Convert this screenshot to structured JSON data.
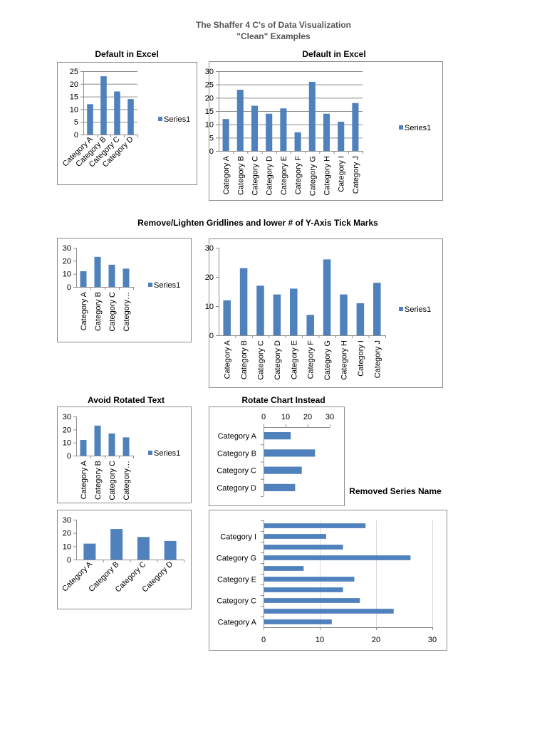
{
  "document": {
    "title_line1": "The Shaffer 4 C's of Data Visualization",
    "title_line2": "\"Clean\" Examples",
    "section_heading": "Remove/Lighten Gridlines and lower # of Y-Axis Tick Marks",
    "caption_default_1": "Default in Excel",
    "caption_default_2": "Default in Excel",
    "caption_avoid_rotated": "Avoid Rotated Text",
    "caption_rotate_chart": "Rotate Chart Instead",
    "caption_removed_series": "Removed Series Name"
  },
  "colors": {
    "bar": "#4f81bd",
    "gridline": "#8c8c8c",
    "light_gridline": "#d9d9d9",
    "frame": "#8c8c8c"
  },
  "chart_data": [
    {
      "type": "bar",
      "orientation": "vertical",
      "title": "Default in Excel",
      "categories": [
        "Category A",
        "Category B",
        "Category C",
        "Category D"
      ],
      "display_labels": [
        "Category A",
        "Category B",
        "Category C",
        "Category D"
      ],
      "series": [
        {
          "name": "Series1",
          "values": [
            12,
            23,
            17,
            14
          ]
        }
      ],
      "ylim": [
        0,
        25
      ],
      "ticks": [
        0,
        5,
        10,
        15,
        20,
        25
      ],
      "grid": true,
      "label_rotation": -45,
      "legend": "right"
    },
    {
      "type": "bar",
      "orientation": "vertical",
      "title": "Default in Excel",
      "categories": [
        "Category A",
        "Category B",
        "Category C",
        "Category D",
        "Category E",
        "Category F",
        "Category G",
        "Category H",
        "Category I",
        "Category J"
      ],
      "display_labels": [
        "Category A",
        "Category B",
        "Category C",
        "Category D",
        "Category E",
        "Category F",
        "Category G",
        "Category H",
        "Category I",
        "Category J"
      ],
      "series": [
        {
          "name": "Series1",
          "values": [
            12,
            23,
            17,
            14,
            16,
            7,
            26,
            14,
            11,
            18
          ]
        }
      ],
      "ylim": [
        0,
        30
      ],
      "ticks": [
        0,
        5,
        10,
        15,
        20,
        25,
        30
      ],
      "grid": true,
      "label_rotation": -90,
      "legend": "right"
    },
    {
      "type": "bar",
      "orientation": "vertical",
      "categories": [
        "Category A",
        "Category B",
        "Category C",
        "Category D"
      ],
      "display_labels": [
        "Category A",
        "Category B",
        "Category C",
        "Category…"
      ],
      "series": [
        {
          "name": "Series1",
          "values": [
            12,
            23,
            17,
            14
          ]
        }
      ],
      "ylim": [
        0,
        30
      ],
      "ticks": [
        0,
        10,
        20,
        30
      ],
      "grid": false,
      "label_rotation": -90,
      "legend": "right"
    },
    {
      "type": "bar",
      "orientation": "vertical",
      "categories": [
        "Category A",
        "Category B",
        "Category C",
        "Category D",
        "Category E",
        "Category F",
        "Category G",
        "Category H",
        "Category I",
        "Category J"
      ],
      "display_labels": [
        "Category A",
        "Category B",
        "Category C",
        "Category D",
        "Category E",
        "Category F",
        "Category G",
        "Category H",
        "Category I",
        "Category J"
      ],
      "series": [
        {
          "name": "Series1",
          "values": [
            12,
            23,
            17,
            14,
            16,
            7,
            26,
            14,
            11,
            18
          ]
        }
      ],
      "ylim": [
        0,
        30
      ],
      "ticks": [
        0,
        10,
        20,
        30
      ],
      "grid": false,
      "label_rotation": -90,
      "legend": "right"
    },
    {
      "type": "bar",
      "orientation": "vertical",
      "title": "Avoid Rotated Text",
      "categories": [
        "Category A",
        "Category B",
        "Category C",
        "Category D"
      ],
      "display_labels": [
        "Category A",
        "Category B",
        "Category C",
        "Category…"
      ],
      "series": [
        {
          "name": "Series1",
          "values": [
            12,
            23,
            17,
            14
          ]
        }
      ],
      "ylim": [
        0,
        30
      ],
      "ticks": [
        0,
        10,
        20,
        30
      ],
      "grid": false,
      "label_rotation": -90,
      "legend": "right"
    },
    {
      "type": "bar",
      "orientation": "horizontal",
      "title": "Rotate Chart Instead",
      "categories": [
        "Category A",
        "Category B",
        "Category C",
        "Category D"
      ],
      "display_labels": [
        "Category A",
        "Category B",
        "Category C",
        "Category D"
      ],
      "series": [
        {
          "values": [
            12,
            23,
            17,
            14
          ]
        }
      ],
      "xlim": [
        0,
        30
      ],
      "ticks": [
        0,
        10,
        20,
        30
      ],
      "grid": false,
      "axis_position": "top",
      "legend": "none"
    },
    {
      "type": "bar",
      "orientation": "vertical",
      "categories": [
        "Category A",
        "Category B",
        "Category C",
        "Category D"
      ],
      "display_labels": [
        "Category A",
        "Category B",
        "Category C",
        "Category D"
      ],
      "series": [
        {
          "values": [
            12,
            23,
            17,
            14
          ]
        }
      ],
      "ylim": [
        0,
        30
      ],
      "ticks": [
        0,
        10,
        20,
        30
      ],
      "grid": false,
      "label_rotation": -45,
      "legend": "none"
    },
    {
      "type": "bar",
      "orientation": "horizontal",
      "title": "Removed Series Name",
      "categories": [
        "Category A",
        "Category B",
        "Category C",
        "Category D",
        "Category E",
        "Category F",
        "Category G",
        "Category H",
        "Category I",
        "Category J"
      ],
      "display_labels": [
        "Category A",
        "",
        "Category C",
        "",
        "Category E",
        "",
        "Category G",
        "",
        "Category I",
        ""
      ],
      "series": [
        {
          "values": [
            12,
            23,
            17,
            14,
            16,
            7,
            26,
            14,
            11,
            18
          ]
        }
      ],
      "xlim": [
        0,
        30
      ],
      "ticks": [
        0,
        10,
        20,
        30
      ],
      "grid": true,
      "axis_position": "bottom",
      "legend": "none"
    }
  ]
}
